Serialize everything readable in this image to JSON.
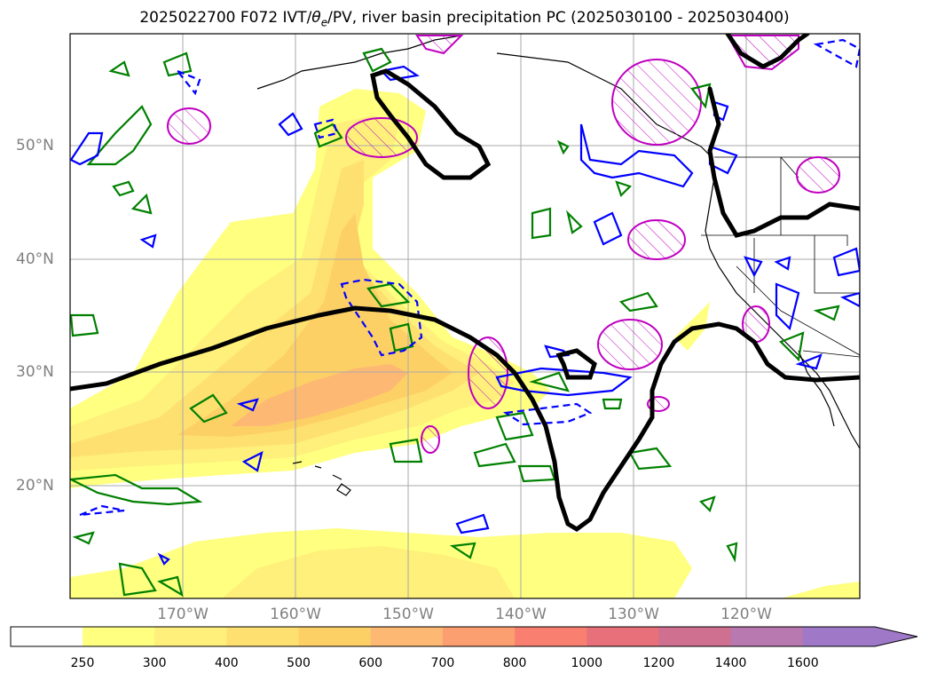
{
  "title": "2025022700 F072 IVT/θe/PV, river basin precipitation PC (2025030100 - 2025030400)",
  "title_parts": {
    "prefix": "2025022700 F072 IVT/",
    "theta": "θ",
    "subscript": "e",
    "suffix": "/PV, river basin precipitation PC (2025030100 - 2025030400)"
  },
  "map": {
    "lat_labels": [
      "50°N",
      "40°N",
      "30°N",
      "20°N"
    ],
    "lon_labels": [
      "170°W",
      "160°W",
      "150°W",
      "140°W",
      "130°W",
      "120°W"
    ],
    "extent": {
      "lon_min": -180,
      "lon_max": -110,
      "lat_min": 10,
      "lat_max": 60
    }
  },
  "colorbar": {
    "labels": [
      "250",
      "300",
      "400",
      "500",
      "600",
      "700",
      "800",
      "1000",
      "1200",
      "1400",
      "1600"
    ],
    "colors": [
      "#ffff80",
      "#fef07a",
      "#fee070",
      "#fdd066",
      "#fdb873",
      "#fc9f70",
      "#f98070",
      "#e8707a",
      "#d07090",
      "#b878b0",
      "#a078c8"
    ],
    "extend": "max"
  },
  "legend_colors": {
    "positive_anomaly_hatch": "#c000c0",
    "pc_blue": "#0000ff",
    "pc_green": "#008000",
    "pv_contour": "#000000"
  }
}
